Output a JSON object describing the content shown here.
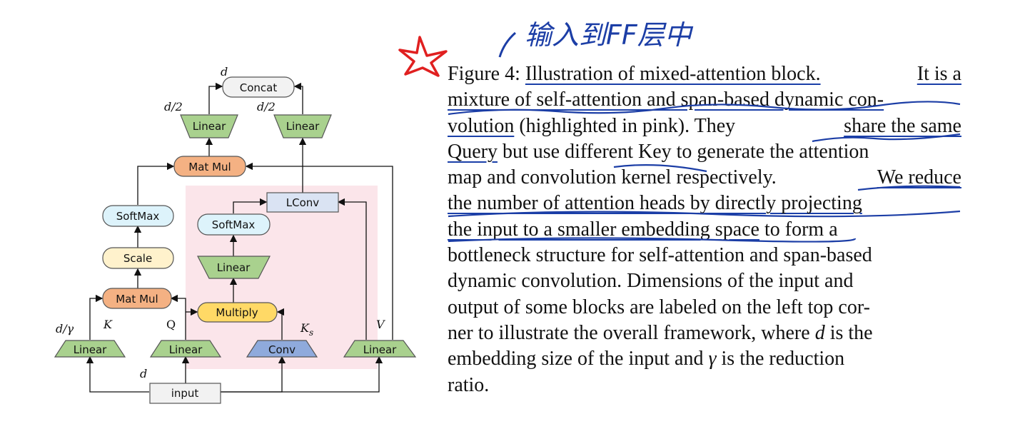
{
  "figure": {
    "nodes": {
      "concat": "Concat",
      "linear_out_left": "Linear",
      "linear_out_right": "Linear",
      "matmul_top": "Mat Mul",
      "softmax_left": "SoftMax",
      "scale": "Scale",
      "matmul_bottom": "Mat Mul",
      "lconv": "LConv",
      "softmax_right": "SoftMax",
      "linear_mid": "Linear",
      "multiply": "Multiply",
      "linear_k": "Linear",
      "linear_q": "Linear",
      "conv": "Conv",
      "linear_v": "Linear",
      "input": "input"
    },
    "labels": {
      "d_top": "d",
      "d_half_left": "d/2",
      "d_half_right": "d/2",
      "d_gamma": "d/γ",
      "K": "K",
      "Q": "Q",
      "K_s": "K",
      "K_s_sub": "s",
      "V": "V",
      "d_input": "d"
    },
    "colors": {
      "linear": "#a9d18e",
      "matmul": "#f4b183",
      "softmax": "#ddf3fb",
      "scale": "#fff2cc",
      "multiply": "#ffd966",
      "conv": "#8faadc",
      "lconv": "#dae3f3",
      "concat": "#f2f2f2",
      "input": "#f2f2f2",
      "highlight": "#fbe5ea"
    }
  },
  "caption": {
    "lines": [
      [
        "Figure 4: ",
        "Illustration of mixed-attention block.",
        " ",
        "It is a"
      ],
      [
        "mixture of self-attention and span-based dynamic con-"
      ],
      [
        "volution",
        " (highlighted in pink). They ",
        "share the same"
      ],
      [
        "Query",
        " but use different Key to generate the attention"
      ],
      [
        "map and convolution kernel respectively. ",
        "We reduce"
      ],
      [
        "the number of attention heads by directly projecting"
      ],
      [
        "the input to a smaller embedding space",
        " to form a"
      ],
      [
        "bottleneck structure for self-attention and span-based"
      ],
      [
        "dynamic convolution.  Dimensions of the input and"
      ],
      [
        "output of some blocks are labeled on the left top cor-"
      ],
      [
        "ner to illustrate the overall framework, where ",
        "d",
        " is the"
      ],
      [
        "embedding size of the input and ",
        "γ",
        " is the reduction"
      ],
      [
        "ratio."
      ]
    ]
  },
  "annotation": {
    "handwriting": "输入到FF层中"
  }
}
